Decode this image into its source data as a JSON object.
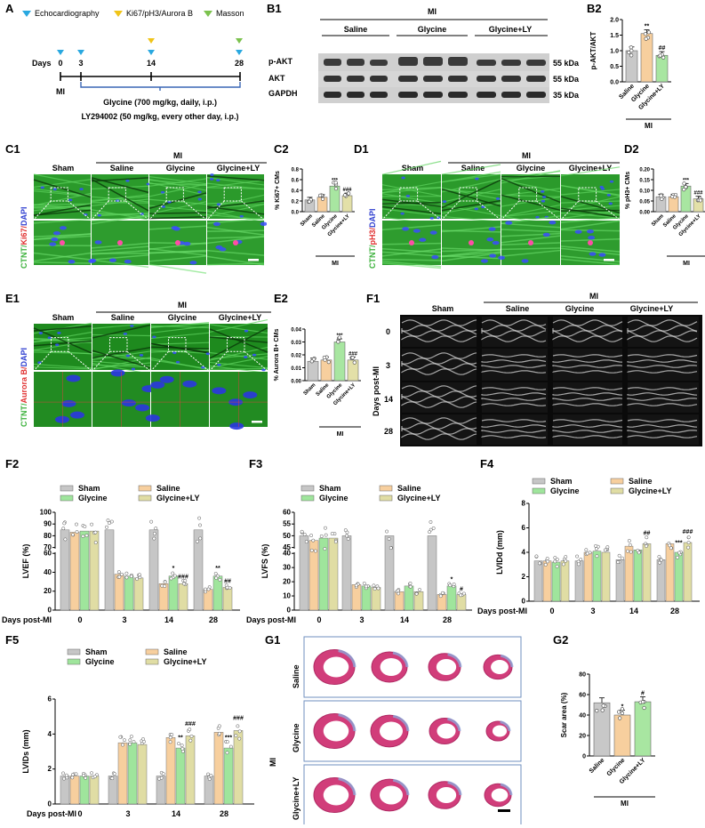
{
  "panel_labels": {
    "A": "A",
    "B1": "B1",
    "B2": "B2",
    "C1": "C1",
    "C2": "C2",
    "D1": "D1",
    "D2": "D2",
    "E1": "E1",
    "E2": "E2",
    "F1": "F1",
    "F2": "F2",
    "F3": "F3",
    "F4": "F4",
    "F5": "F5",
    "G1": "G1",
    "G2": "G2"
  },
  "timeline": {
    "legend": [
      "Echocardiography",
      "Ki67/pH3/Aurora B",
      "Masson"
    ],
    "legend_colors": [
      "#29a8e0",
      "#f0c419",
      "#7cc24e"
    ],
    "days_label": "Days",
    "days": [
      "0",
      "3",
      "14",
      "28"
    ],
    "mi_label": "MI",
    "treatment1": "Glycine (700 mg/kg, daily, i.p.)",
    "treatment2": "LY294002 (50 mg/kg, every other day, i.p.)"
  },
  "western": {
    "mi_label": "MI",
    "groups": [
      "Saline",
      "Glycine",
      "Glycine+LY"
    ],
    "rows": [
      "p-AKT",
      "AKT",
      "GAPDH"
    ],
    "sizes": [
      "55 kDa",
      "55 kDa",
      "35 kDa"
    ]
  },
  "micro": {
    "mi_label": "MI",
    "groups": [
      "Sham",
      "Saline",
      "Glycine",
      "Glycine+LY"
    ],
    "c_stain": [
      "CTNT/",
      "Ki67/",
      "DAPI"
    ],
    "d_stain": [
      "CTNT/",
      "pH3/",
      "DAPI"
    ],
    "e_stain": [
      "CTNT/",
      "Aurora B/",
      "DAPI"
    ]
  },
  "echo": {
    "mi_label": "MI",
    "groups": [
      "Sham",
      "Saline",
      "Glycine",
      "Glycine+LY"
    ],
    "row_axis": "Days post-MI",
    "rows": [
      "0",
      "3",
      "14",
      "28"
    ]
  },
  "masson": {
    "mi_label": "MI",
    "rows": [
      "Saline",
      "Glycine",
      "Glycine+LY"
    ]
  },
  "chart_data": [
    {
      "id": "B2",
      "type": "bar",
      "ylabel": "p-AKT/AKT",
      "categories": [
        "Saline",
        "Glycine",
        "Glycine+LY"
      ],
      "values": [
        1.0,
        1.55,
        0.85
      ],
      "ylim": [
        0,
        2.0
      ],
      "yticks": [
        "0.0",
        "0.5",
        "1.0",
        "1.5",
        "2.0"
      ],
      "sig": [
        "",
        "**",
        "##"
      ],
      "group_label": "MI",
      "colors": [
        "#c8c8c8",
        "#f7cf9e",
        "#a8e6a1"
      ]
    },
    {
      "id": "C2",
      "type": "bar",
      "ylabel": "% Ki67+ CMs",
      "categories": [
        "Sham",
        "Saline",
        "Glycine",
        "Glycine+LY"
      ],
      "values": [
        0.22,
        0.27,
        0.48,
        0.3
      ],
      "ylim": [
        0,
        0.8
      ],
      "yticks": [
        "0.0",
        "0.2",
        "0.4",
        "0.6",
        "0.8"
      ],
      "sig": [
        "",
        "",
        "***",
        "###"
      ],
      "group_label": "MI",
      "colors": [
        "#c8c8c8",
        "#f7cf9e",
        "#a8e6a1",
        "#e3e0a8"
      ]
    },
    {
      "id": "D2",
      "type": "bar",
      "ylabel": "% pH3+ CMs",
      "categories": [
        "Sham",
        "Saline",
        "Glycine",
        "Glycine+LY"
      ],
      "values": [
        0.07,
        0.07,
        0.12,
        0.06
      ],
      "ylim": [
        0,
        0.2
      ],
      "yticks": [
        "0.00",
        "0.05",
        "0.10",
        "0.15",
        "0.20"
      ],
      "sig": [
        "",
        "",
        "***",
        "###"
      ],
      "group_label": "MI",
      "colors": [
        "#c8c8c8",
        "#f7cf9e",
        "#a8e6a1",
        "#e3e0a8"
      ]
    },
    {
      "id": "E2",
      "type": "bar",
      "ylabel": "% Aurora B+ CMs",
      "categories": [
        "Sham",
        "Saline",
        "Glycine",
        "Glycine+LY"
      ],
      "values": [
        0.015,
        0.016,
        0.03,
        0.016
      ],
      "ylim": [
        0,
        0.04
      ],
      "yticks": [
        "0.00",
        "0.01",
        "0.02",
        "0.03",
        "0.04"
      ],
      "sig": [
        "",
        "",
        "***",
        "###"
      ],
      "group_label": "MI",
      "colors": [
        "#c8c8c8",
        "#f7cf9e",
        "#a8e6a1",
        "#e3e0a8"
      ]
    },
    {
      "id": "F2",
      "type": "bar",
      "ylabel": "LVEF (%)",
      "xlabel": "Days post-MI",
      "categories": [
        "0",
        "3",
        "14",
        "28"
      ],
      "series": [
        {
          "name": "Sham",
          "values": [
            85,
            85,
            85,
            85
          ]
        },
        {
          "name": "Saline",
          "values": [
            83,
            38,
            28,
            22
          ]
        },
        {
          "name": "Glycine",
          "values": [
            84,
            36,
            36,
            36
          ]
        },
        {
          "name": "Glycine+LY",
          "values": [
            84,
            34,
            28,
            24
          ]
        }
      ],
      "yticks": [
        "0",
        "20",
        "40",
        "60",
        "70",
        "80",
        "90",
        "100"
      ],
      "sig": {
        "14": [
          "",
          "",
          "*",
          "###"
        ],
        "28": [
          "",
          "",
          "**",
          "##"
        ]
      }
    },
    {
      "id": "F3",
      "type": "bar",
      "ylabel": "LVFS (%)",
      "xlabel": "Days post-MI",
      "categories": [
        "0",
        "3",
        "14",
        "28"
      ],
      "series": [
        {
          "name": "Sham",
          "values": [
            50,
            50,
            50,
            50
          ]
        },
        {
          "name": "Saline",
          "values": [
            48,
            18,
            13,
            11
          ]
        },
        {
          "name": "Glycine",
          "values": [
            49,
            17,
            17,
            17
          ]
        },
        {
          "name": "Glycine+LY",
          "values": [
            49,
            16,
            13,
            11
          ]
        }
      ],
      "yticks": [
        "0",
        "10",
        "20",
        "30",
        "40",
        "45",
        "50",
        "55",
        "60"
      ],
      "sig": {
        "28": [
          "",
          "",
          "*",
          "#"
        ]
      }
    },
    {
      "id": "F4",
      "type": "bar",
      "ylabel": "LVIDd (mm)",
      "xlabel": "Days post-MI",
      "categories": [
        "0",
        "3",
        "14",
        "28"
      ],
      "series": [
        {
          "name": "Sham",
          "values": [
            3.3,
            3.3,
            3.4,
            3.4
          ]
        },
        {
          "name": "Saline",
          "values": [
            3.3,
            4.0,
            4.5,
            4.7
          ]
        },
        {
          "name": "Glycine",
          "values": [
            3.2,
            4.1,
            4.2,
            4.0
          ]
        },
        {
          "name": "Glycine+LY",
          "values": [
            3.3,
            4.0,
            4.7,
            4.8
          ]
        }
      ],
      "ylim": [
        0,
        8
      ],
      "yticks": [
        "0",
        "2",
        "4",
        "6",
        "8"
      ],
      "sig": {
        "14": [
          "",
          "",
          "",
          "##"
        ],
        "28": [
          "",
          "",
          "***",
          "###"
        ]
      }
    },
    {
      "id": "F5",
      "type": "bar",
      "ylabel": "LVIDs (mm)",
      "xlabel": "Days post-MI",
      "categories": [
        "0",
        "3",
        "14",
        "28"
      ],
      "series": [
        {
          "name": "Sham",
          "values": [
            1.6,
            1.6,
            1.6,
            1.6
          ]
        },
        {
          "name": "Saline",
          "values": [
            1.6,
            3.5,
            3.8,
            4.1
          ]
        },
        {
          "name": "Glycine",
          "values": [
            1.6,
            3.5,
            3.2,
            3.2
          ]
        },
        {
          "name": "Glycine+LY",
          "values": [
            1.6,
            3.4,
            3.9,
            4.2
          ]
        }
      ],
      "ylim": [
        0,
        6
      ],
      "yticks": [
        "0",
        "2",
        "4",
        "6"
      ],
      "sig": {
        "14": [
          "",
          "",
          "**",
          "###"
        ],
        "28": [
          "",
          "",
          "***",
          "###"
        ]
      }
    },
    {
      "id": "G2",
      "type": "bar",
      "ylabel": "Scar area (%)",
      "categories": [
        "Saline",
        "Glycine",
        "Glycine+LY"
      ],
      "values": [
        52,
        40,
        53
      ],
      "ylim": [
        0,
        80
      ],
      "yticks": [
        "0",
        "20",
        "40",
        "60",
        "80"
      ],
      "sig": [
        "",
        "*",
        "#"
      ],
      "group_label": "MI",
      "colors": [
        "#c8c8c8",
        "#f7cf9e",
        "#a8e6a1"
      ]
    }
  ]
}
